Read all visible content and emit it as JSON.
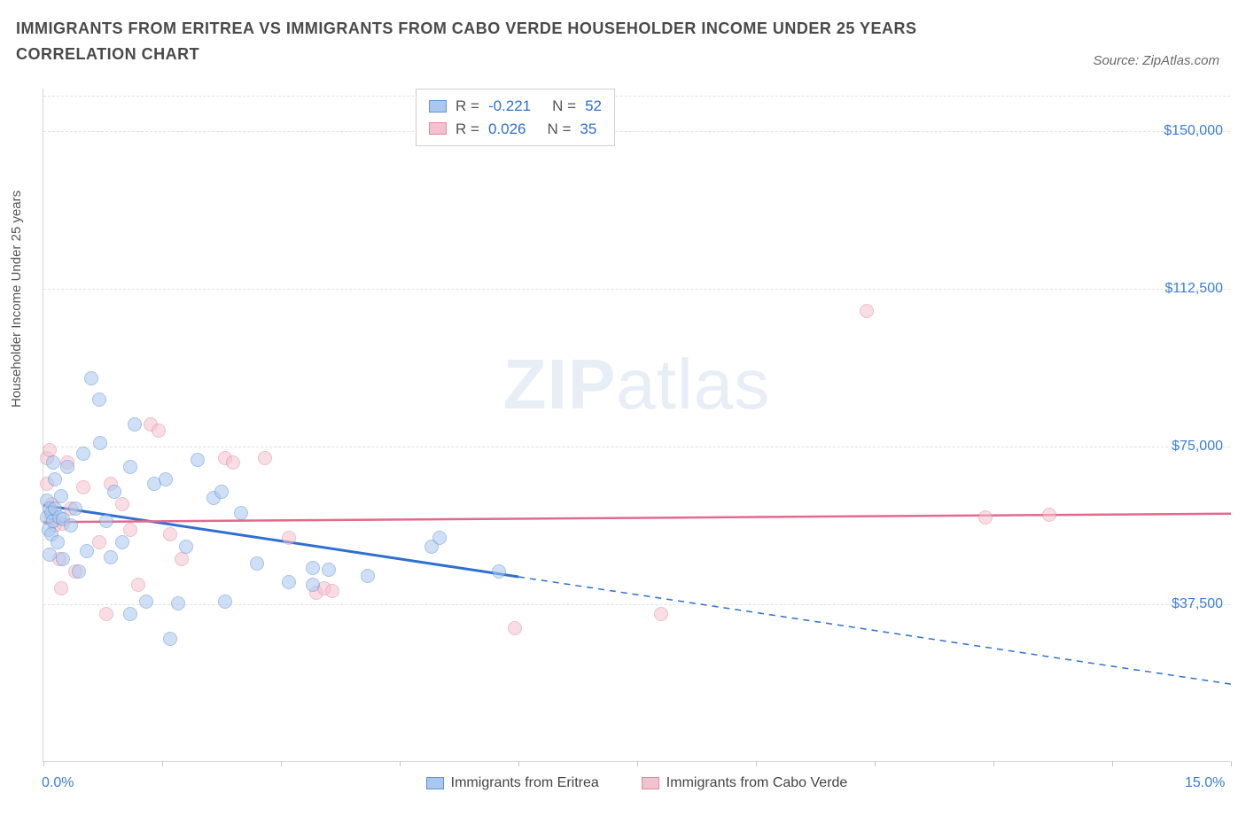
{
  "title": "IMMIGRANTS FROM ERITREA VS IMMIGRANTS FROM CABO VERDE HOUSEHOLDER INCOME UNDER 25 YEARS CORRELATION CHART",
  "source": "Source: ZipAtlas.com",
  "ylabel": "Householder Income Under 25 years",
  "watermark_bold": "ZIP",
  "watermark_rest": "atlas",
  "chart": {
    "type": "scatter-with-regression",
    "xlim": [
      0,
      15
    ],
    "ylim": [
      0,
      160000
    ],
    "x_unit": "%",
    "yticks": [
      37500,
      75000,
      112500,
      150000
    ],
    "ytick_labels": [
      "$37,500",
      "$75,000",
      "$112,500",
      "$150,000"
    ],
    "xtick_positions": [
      0,
      1.5,
      3.0,
      4.5,
      6.0,
      7.5,
      9.0,
      10.5,
      12.0,
      13.5,
      15.0
    ],
    "xaxis_labels": [
      {
        "pos": 0,
        "text": "0.0%"
      },
      {
        "pos": 15,
        "text": "15.0%"
      }
    ],
    "background_color": "#ffffff",
    "grid_color": "#e2e2e2",
    "axis_color": "#d7d7d7",
    "tick_label_color": "#3b7dd8",
    "point_radius": 8,
    "point_opacity": 0.55
  },
  "series": {
    "eritrea": {
      "label": "Immigrants from Eritrea",
      "fill": "#a9c7ef",
      "stroke": "#5f93d6",
      "line_color": "#2f6fd0",
      "R": "-0.221",
      "N": "52",
      "regression": {
        "x1": 0,
        "y1": 61000,
        "x2_solid": 6.0,
        "y2_solid": 44000,
        "x2": 15,
        "y2": 18500
      },
      "points": [
        [
          0.05,
          58000
        ],
        [
          0.05,
          62000
        ],
        [
          0.07,
          55000
        ],
        [
          0.08,
          60000
        ],
        [
          0.08,
          49000
        ],
        [
          0.1,
          54000
        ],
        [
          0.1,
          59000
        ],
        [
          0.12,
          57000
        ],
        [
          0.12,
          71000
        ],
        [
          0.15,
          67000
        ],
        [
          0.15,
          60000
        ],
        [
          0.18,
          52000
        ],
        [
          0.2,
          58000
        ],
        [
          0.22,
          63000
        ],
        [
          0.25,
          57500
        ],
        [
          0.25,
          48000
        ],
        [
          0.3,
          70000
        ],
        [
          0.35,
          56000
        ],
        [
          0.4,
          60000
        ],
        [
          0.45,
          45000
        ],
        [
          0.5,
          73000
        ],
        [
          0.55,
          50000
        ],
        [
          0.6,
          91000
        ],
        [
          0.7,
          86000
        ],
        [
          0.72,
          75500
        ],
        [
          0.8,
          57000
        ],
        [
          0.85,
          48500
        ],
        [
          0.9,
          64000
        ],
        [
          1.0,
          52000
        ],
        [
          1.1,
          70000
        ],
        [
          1.1,
          35000
        ],
        [
          1.15,
          80000
        ],
        [
          1.3,
          38000
        ],
        [
          1.4,
          66000
        ],
        [
          1.55,
          67000
        ],
        [
          1.6,
          29000
        ],
        [
          1.7,
          37500
        ],
        [
          1.8,
          51000
        ],
        [
          1.95,
          71500
        ],
        [
          2.15,
          62500
        ],
        [
          2.25,
          64000
        ],
        [
          2.3,
          38000
        ],
        [
          2.5,
          59000
        ],
        [
          2.7,
          47000
        ],
        [
          3.1,
          42500
        ],
        [
          3.4,
          46000
        ],
        [
          3.4,
          42000
        ],
        [
          3.6,
          45500
        ],
        [
          4.1,
          44000
        ],
        [
          4.9,
          51000
        ],
        [
          5.0,
          53000
        ],
        [
          5.75,
          45000
        ]
      ]
    },
    "caboverde": {
      "label": "Immigrants from Cabo Verde",
      "fill": "#f3c2cf",
      "stroke": "#e48aa3",
      "line_color": "#e26a8b",
      "R": "0.026",
      "N": "35",
      "regression": {
        "x1": 0,
        "y1": 57000,
        "x2": 15,
        "y2": 59000
      },
      "points": [
        [
          0.05,
          72000
        ],
        [
          0.05,
          66000
        ],
        [
          0.08,
          74000
        ],
        [
          0.1,
          58000
        ],
        [
          0.1,
          61000
        ],
        [
          0.15,
          56000
        ],
        [
          0.2,
          48000
        ],
        [
          0.22,
          41000
        ],
        [
          0.25,
          56500
        ],
        [
          0.3,
          71000
        ],
        [
          0.35,
          60000
        ],
        [
          0.4,
          45000
        ],
        [
          0.5,
          65000
        ],
        [
          0.7,
          52000
        ],
        [
          0.8,
          35000
        ],
        [
          0.85,
          66000
        ],
        [
          1.0,
          61000
        ],
        [
          1.1,
          55000
        ],
        [
          1.2,
          42000
        ],
        [
          1.35,
          80000
        ],
        [
          1.45,
          78500
        ],
        [
          1.6,
          54000
        ],
        [
          1.75,
          48000
        ],
        [
          2.3,
          72000
        ],
        [
          2.4,
          71000
        ],
        [
          2.8,
          72000
        ],
        [
          3.1,
          53000
        ],
        [
          3.45,
          40000
        ],
        [
          3.55,
          41000
        ],
        [
          3.65,
          40500
        ],
        [
          5.95,
          31500
        ],
        [
          7.8,
          35000
        ],
        [
          10.4,
          107000
        ],
        [
          11.9,
          58000
        ],
        [
          12.7,
          58500
        ]
      ]
    }
  },
  "stats_box": {
    "rows": [
      {
        "series": "eritrea",
        "R_label": "R =",
        "N_label": "N ="
      },
      {
        "series": "caboverde",
        "R_label": "R =",
        "N_label": "N ="
      }
    ]
  }
}
